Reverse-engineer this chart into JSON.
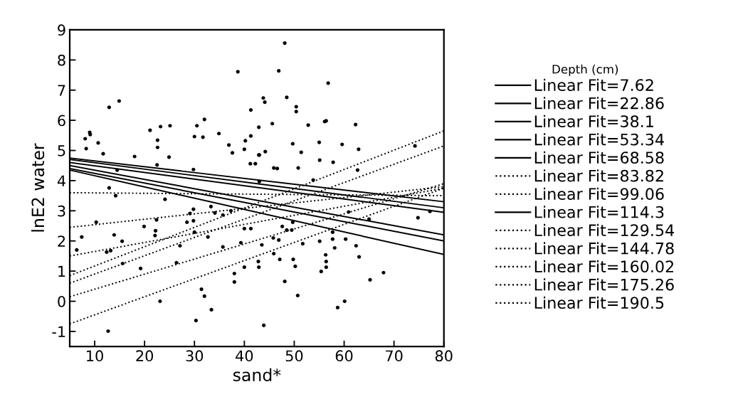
{
  "chart_data": {
    "type": "scatter",
    "xlabel": "sand*",
    "ylabel": "lnE2 water",
    "legend_title": "Depth (cm)",
    "legend": "right",
    "grid": false,
    "xlim": [
      5,
      80
    ],
    "ylim": [
      -1.5,
      9
    ],
    "xticks": [
      10,
      20,
      30,
      40,
      50,
      60,
      70,
      80
    ],
    "yticks": [
      -1,
      0,
      1,
      2,
      3,
      4,
      5,
      6,
      7,
      8,
      9
    ],
    "series": [
      {
        "color": "#000000",
        "marker": "circle",
        "x": [
          38.7,
          12.9,
          14.9,
          9.0,
          9.1,
          8.1,
          8.3,
          10.7,
          11.7,
          18.0,
          21.1,
          23.2,
          25.1,
          22.6,
          22.6,
          24.9,
          30.0,
          30.5,
          32.0,
          31.7,
          34.9,
          36.9,
          37.6,
          41.3,
          41.3,
          40.2,
          40.0,
          41.2,
          42.2,
          42.9,
          42.9,
          22.5,
          14.5,
          29.8,
          12.9,
          48.1,
          46.9,
          56.8,
          43.8,
          44.1,
          48.5,
          50.4,
          50.4,
          45.6,
          52.8,
          56.1,
          56.4,
          62.3,
          49.7,
          55.0,
          44.2,
          43.0,
          51.4,
          59.6,
          62.9,
          55.1,
          57.8,
          45.9,
          46.6,
          50.8,
          53.8,
          74.2,
          62.7,
          43.0,
          14.2,
          24.1,
          33.3,
          34.1,
          35.7,
          37.3,
          29.8,
          29.1,
          28.5,
          29.8,
          10.3,
          19.9,
          22.4,
          22.2,
          22.1,
          7.4,
          13.9,
          15.5,
          6.4,
          12.4,
          13.2,
          15.6,
          19.2,
          26.4,
          27.1,
          30.0,
          32.7,
          35.7,
          39.3,
          40.0,
          41.3,
          40.0,
          38.0,
          38.0,
          31.4,
          32.0,
          33.4,
          23.1,
          30.3,
          12.7,
          42.8,
          42.9,
          43.9,
          48.1,
          50.7,
          58.7,
          60.1,
          65.2,
          67.9,
          55.4,
          56.4,
          56.4,
          56.3,
          50.2,
          49.8,
          47.1,
          45.9,
          46.9,
          45.8,
          43.5,
          51.7,
          55.1,
          57.7,
          58.1,
          57.7,
          60.3,
          62.4,
          63.0,
          48.5,
          47.6,
          49.7,
          49.5,
          74.8,
          77.2,
          65.0,
          60.9
        ],
        "values": [
          7.61,
          6.43,
          6.64,
          5.6,
          5.53,
          5.39,
          5.06,
          5.25,
          4.89,
          4.8,
          5.67,
          5.79,
          5.82,
          5.34,
          5.1,
          4.78,
          5.46,
          5.82,
          6.03,
          5.44,
          5.56,
          5.18,
          4.92,
          6.34,
          5.48,
          5.32,
          5.04,
          4.56,
          4.56,
          4.85,
          5.77,
          4.52,
          4.35,
          4.37,
          3.76,
          8.56,
          7.64,
          7.23,
          6.74,
          6.6,
          6.76,
          6.45,
          6.29,
          5.89,
          5.84,
          5.96,
          5.98,
          5.86,
          5.22,
          5.27,
          4.96,
          4.85,
          4.94,
          5.2,
          5.04,
          4.68,
          4.61,
          4.42,
          4.4,
          4.42,
          4.02,
          5.15,
          4.35,
          3.97,
          3.5,
          3.38,
          3.14,
          2.93,
          2.86,
          3.0,
          3.05,
          2.91,
          2.62,
          2.67,
          2.62,
          2.48,
          2.7,
          2.34,
          2.18,
          2.13,
          2.2,
          1.99,
          1.7,
          1.63,
          1.68,
          1.25,
          1.09,
          1.28,
          1.84,
          2.29,
          2.13,
          1.8,
          1.94,
          2.41,
          2.41,
          1.13,
          0.92,
          0.64,
          0.4,
          0.17,
          -0.28,
          0.0,
          -0.64,
          -0.99,
          1.32,
          1.13,
          -0.8,
          0.66,
          0.19,
          -0.21,
          0.0,
          0.71,
          0.95,
          0.99,
          1.13,
          1.32,
          1.54,
          1.16,
          1.39,
          1.39,
          1.58,
          2.03,
          2.1,
          1.87,
          1.91,
          1.99,
          2.06,
          1.77,
          2.29,
          2.06,
          1.84,
          1.47,
          2.36,
          2.48,
          2.62,
          2.36,
          2.77,
          2.98,
          2.72,
          2.96
        ]
      },
      {
        "type": "line",
        "name": "Linear Fit=7.62",
        "color": "#000000",
        "line_style": "solid",
        "x": [
          5,
          80
        ],
        "values": [
          4.75,
          3.3
        ]
      },
      {
        "type": "line",
        "name": "Linear Fit=22.86",
        "color": "#000000",
        "line_style": "solid",
        "x": [
          5,
          80
        ],
        "values": [
          4.7,
          3.1
        ]
      },
      {
        "type": "line",
        "name": "Linear Fit=38.1",
        "color": "#000000",
        "line_style": "solid",
        "x": [
          5,
          80
        ],
        "values": [
          4.6,
          2.95
        ]
      },
      {
        "type": "line",
        "name": "Linear Fit=53.34",
        "color": "#000000",
        "line_style": "solid",
        "x": [
          5,
          80
        ],
        "values": [
          4.5,
          2.2
        ]
      },
      {
        "type": "line",
        "name": "Linear Fit=68.58",
        "color": "#000000",
        "line_style": "solid",
        "x": [
          5,
          80
        ],
        "values": [
          4.4,
          2.0
        ]
      },
      {
        "type": "line",
        "name": "Linear Fit=83.82",
        "color": "#000000",
        "line_style": "dotted",
        "x": [
          5,
          80
        ],
        "values": [
          3.6,
          3.5
        ]
      },
      {
        "type": "line",
        "name": "Linear Fit=99.06",
        "color": "#000000",
        "line_style": "dotted",
        "x": [
          5,
          80
        ],
        "values": [
          2.45,
          3.8
        ]
      },
      {
        "type": "line",
        "name": "Linear Fit=114.3",
        "color": "#000000",
        "line_style": "solid",
        "x": [
          5,
          80
        ],
        "values": [
          4.35,
          1.55
        ]
      },
      {
        "type": "line",
        "name": "Linear Fit=129.54",
        "color": "#000000",
        "line_style": "dotted",
        "x": [
          5,
          80
        ],
        "values": [
          1.5,
          3.75
        ]
      },
      {
        "type": "line",
        "name": "Linear Fit=144.78",
        "color": "#000000",
        "line_style": "dotted",
        "x": [
          5,
          80
        ],
        "values": [
          0.85,
          5.65
        ]
      },
      {
        "type": "line",
        "name": "Linear Fit=160.02",
        "color": "#000000",
        "line_style": "dotted",
        "x": [
          5,
          80
        ],
        "values": [
          0.6,
          5.15
        ]
      },
      {
        "type": "line",
        "name": "Linear Fit=175.26",
        "color": "#000000",
        "line_style": "dotted",
        "x": [
          5,
          80
        ],
        "values": [
          0.15,
          3.9
        ]
      },
      {
        "type": "line",
        "name": "Linear Fit=190.5",
        "color": "#000000",
        "line_style": "dotted",
        "x": [
          5,
          80
        ],
        "values": [
          -0.75,
          3.75
        ]
      }
    ]
  }
}
